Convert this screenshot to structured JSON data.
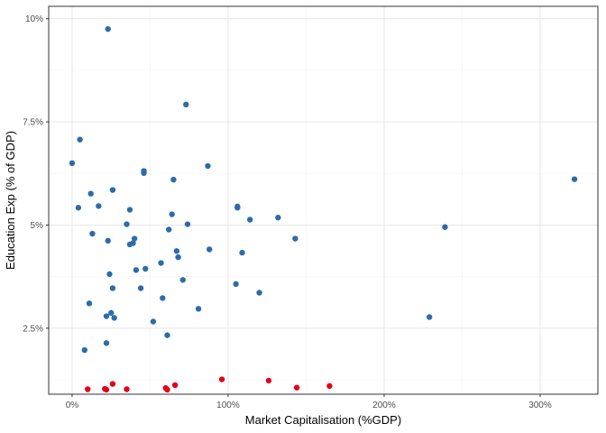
{
  "chart_data": {
    "type": "scatter",
    "title": "",
    "xlabel": "Market Capitalisation (%GDP)",
    "ylabel": "Education Exp (% of GDP)",
    "xlim": [
      -15,
      337
    ],
    "ylim": [
      0.9,
      10.3
    ],
    "x_ticks": [
      {
        "value": 0,
        "label": "0%"
      },
      {
        "value": 100,
        "label": "100%"
      },
      {
        "value": 200,
        "label": "200%"
      },
      {
        "value": 300,
        "label": "300%"
      }
    ],
    "y_ticks": [
      {
        "value": 2.5,
        "label": "2.5%"
      },
      {
        "value": 5.0,
        "label": "5%"
      },
      {
        "value": 7.5,
        "label": "7.5%"
      },
      {
        "value": 10.0,
        "label": "10%"
      }
    ],
    "grid": true,
    "legend": "none",
    "series": [
      {
        "color": "#2c6ca9",
        "points": [
          [
            23,
            9.75
          ],
          [
            73,
            7.92
          ],
          [
            5,
            7.07
          ],
          [
            0,
            6.5
          ],
          [
            87,
            6.43
          ],
          [
            46,
            6.31
          ],
          [
            46,
            6.26
          ],
          [
            65,
            6.1
          ],
          [
            26,
            5.85
          ],
          [
            12,
            5.76
          ],
          [
            17,
            5.46
          ],
          [
            4,
            5.42
          ],
          [
            106,
            5.45
          ],
          [
            106,
            5.42
          ],
          [
            37,
            5.37
          ],
          [
            64,
            5.26
          ],
          [
            132,
            5.18
          ],
          [
            114,
            5.13
          ],
          [
            74,
            5.02
          ],
          [
            35,
            5.02
          ],
          [
            62,
            4.89
          ],
          [
            13,
            4.79
          ],
          [
            143,
            4.67
          ],
          [
            40,
            4.67
          ],
          [
            23,
            4.62
          ],
          [
            39,
            4.56
          ],
          [
            37,
            4.53
          ],
          [
            88,
            4.41
          ],
          [
            67,
            4.37
          ],
          [
            109,
            4.33
          ],
          [
            68,
            4.22
          ],
          [
            57,
            4.08
          ],
          [
            47,
            3.94
          ],
          [
            41,
            3.91
          ],
          [
            24,
            3.81
          ],
          [
            71,
            3.67
          ],
          [
            105,
            3.57
          ],
          [
            26,
            3.47
          ],
          [
            44,
            3.47
          ],
          [
            120,
            3.36
          ],
          [
            58,
            3.23
          ],
          [
            11,
            3.1
          ],
          [
            81,
            2.97
          ],
          [
            25,
            2.87
          ],
          [
            22,
            2.79
          ],
          [
            27,
            2.75
          ],
          [
            52,
            2.66
          ],
          [
            61,
            2.33
          ],
          [
            22,
            2.14
          ],
          [
            8,
            1.97
          ],
          [
            322,
            6.11
          ],
          [
            239,
            4.95
          ],
          [
            229,
            2.77
          ]
        ]
      },
      {
        "color": "#e3001b",
        "points": [
          [
            10,
            1.02
          ],
          [
            21,
            1.03
          ],
          [
            22,
            1.01
          ],
          [
            26,
            1.15
          ],
          [
            35,
            1.02
          ],
          [
            60,
            1.05
          ],
          [
            61,
            1.01
          ],
          [
            66,
            1.12
          ],
          [
            96,
            1.26
          ],
          [
            126,
            1.23
          ],
          [
            144,
            1.06
          ],
          [
            165,
            1.1
          ]
        ]
      }
    ]
  }
}
